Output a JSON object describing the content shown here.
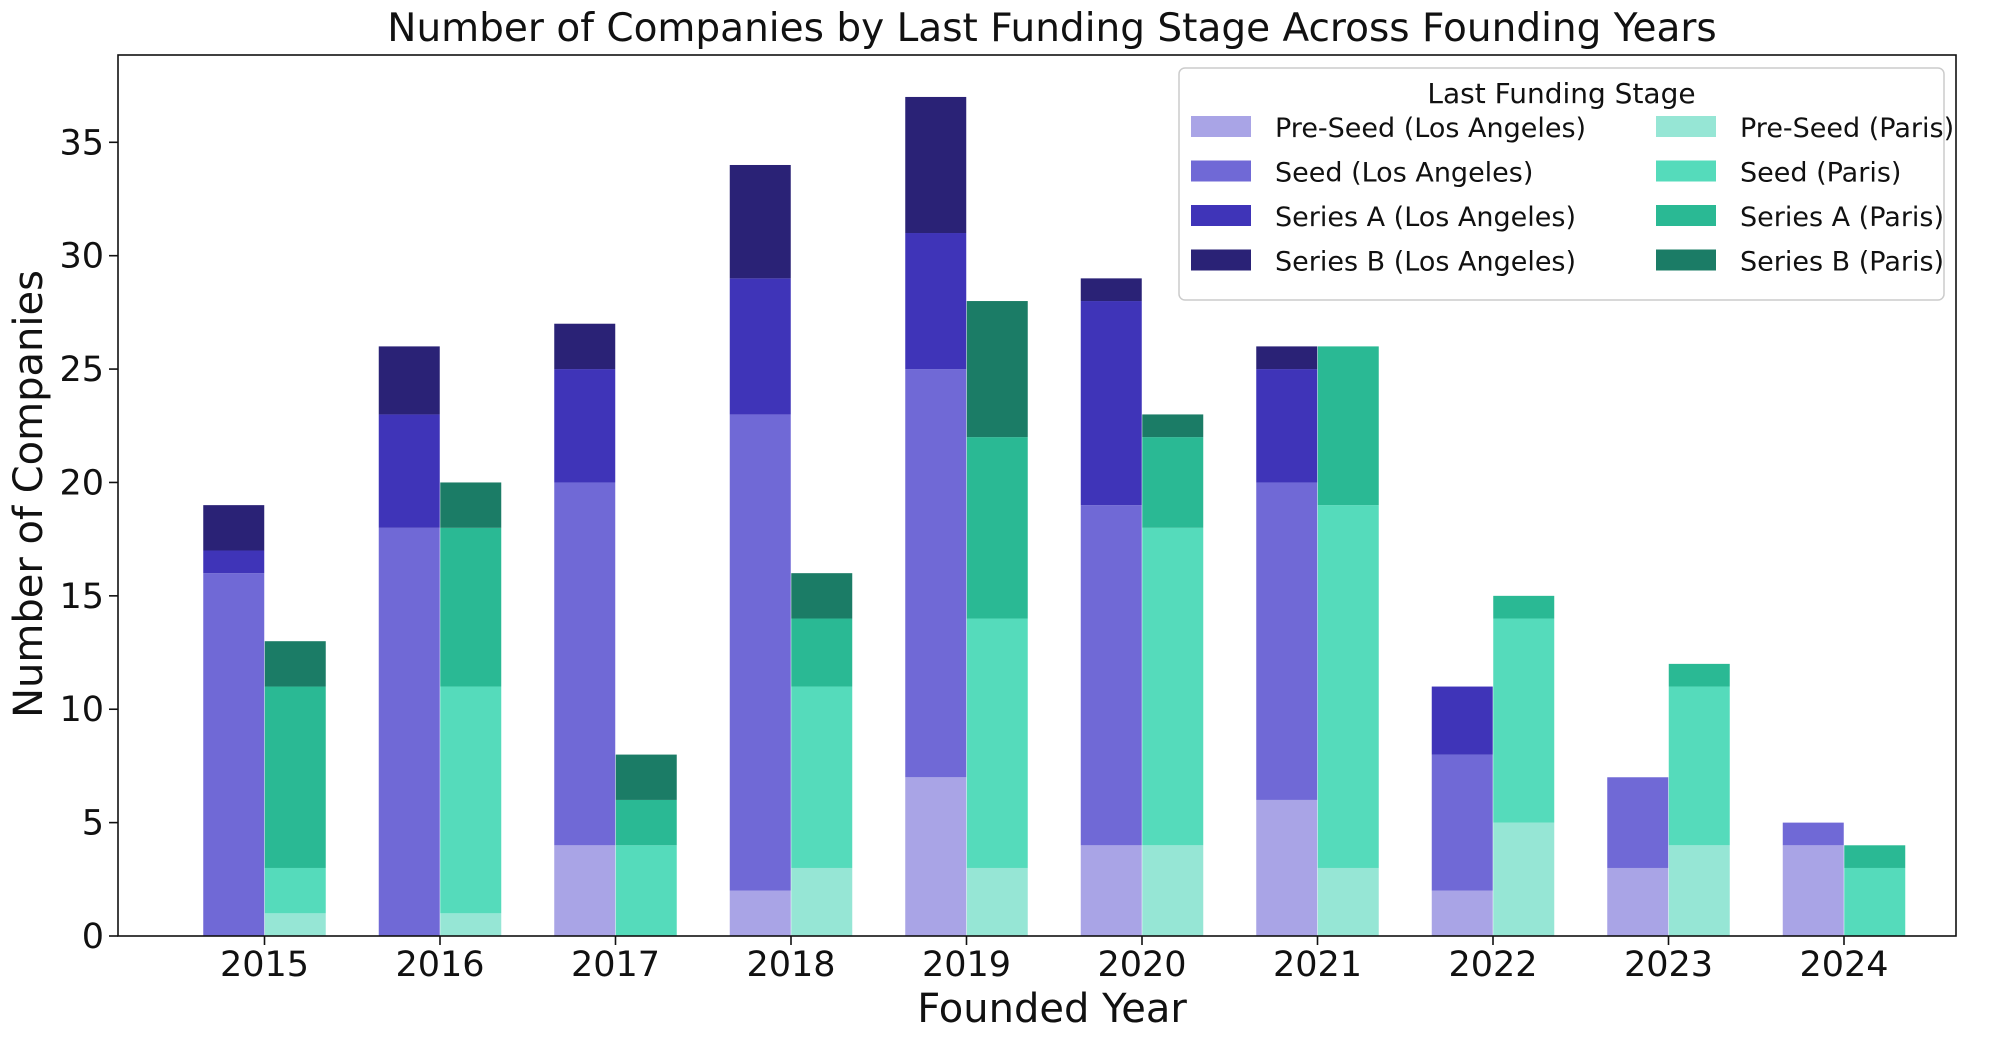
{
  "chart_data": {
    "type": "bar",
    "stacked": true,
    "grouped": true,
    "title": "Number of Companies by Last Funding Stage Across Founding Years",
    "xlabel": "Founded Year",
    "ylabel": "Number of Companies",
    "ylim": [
      0,
      38.85
    ],
    "yticks": [
      0,
      5,
      10,
      15,
      20,
      25,
      30,
      35
    ],
    "grid": false,
    "categories": [
      "2015",
      "2016",
      "2017",
      "2018",
      "2019",
      "2020",
      "2021",
      "2022",
      "2023",
      "2024"
    ],
    "legend": {
      "title": "Last Funding Stage",
      "position": "top-right",
      "columns": 2
    },
    "groups": [
      {
        "name": "Los Angeles",
        "series": [
          {
            "name": "Pre-Seed (Los Angeles)",
            "color": "#a9a4e6",
            "values": [
              0,
              0,
              4,
              2,
              7,
              4,
              6,
              2,
              3,
              4
            ]
          },
          {
            "name": "Seed (Los Angeles)",
            "color": "#7069d6",
            "values": [
              16,
              18,
              16,
              21,
              18,
              15,
              14,
              6,
              4,
              1
            ]
          },
          {
            "name": "Series A (Los Angeles)",
            "color": "#3f34b8",
            "values": [
              1,
              5,
              5,
              6,
              6,
              9,
              5,
              3,
              0,
              0
            ]
          },
          {
            "name": "Series B (Los Angeles)",
            "color": "#2a2276",
            "values": [
              2,
              3,
              2,
              5,
              6,
              1,
              1,
              0,
              0,
              0
            ]
          }
        ]
      },
      {
        "name": "Paris",
        "series": [
          {
            "name": "Pre-Seed (Paris)",
            "color": "#96e6d5",
            "values": [
              1,
              1,
              0,
              3,
              3,
              4,
              3,
              5,
              4,
              0
            ]
          },
          {
            "name": "Seed (Paris)",
            "color": "#55dbbb",
            "values": [
              2,
              10,
              4,
              8,
              11,
              14,
              16,
              9,
              7,
              3
            ]
          },
          {
            "name": "Series A (Paris)",
            "color": "#2ab994",
            "values": [
              8,
              7,
              2,
              3,
              8,
              4,
              7,
              1,
              1,
              1
            ]
          },
          {
            "name": "Series B (Paris)",
            "color": "#1b7c66",
            "values": [
              2,
              2,
              2,
              2,
              6,
              1,
              0,
              0,
              0,
              0
            ]
          }
        ]
      }
    ]
  }
}
